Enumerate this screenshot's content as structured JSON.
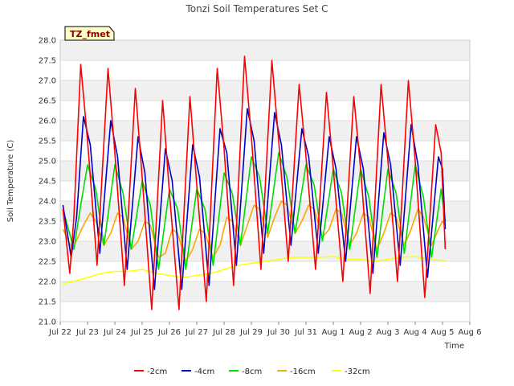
{
  "chart_data": {
    "type": "line",
    "title": "Tonzi Soil Temperatures Set C",
    "xlabel": "Time",
    "ylabel": "Soil Temperature (C)",
    "badge": "TZ_fmet",
    "xlim": [
      22,
      37
    ],
    "ylim": [
      21.0,
      28.0
    ],
    "grid": "horizontal bands",
    "legend_position": "bottom",
    "x_ticks": [
      {
        "x": 22,
        "label": "Jul 22"
      },
      {
        "x": 23,
        "label": "Jul 23"
      },
      {
        "x": 24,
        "label": "Jul 24"
      },
      {
        "x": 25,
        "label": "Jul 25"
      },
      {
        "x": 26,
        "label": "Jul 26"
      },
      {
        "x": 27,
        "label": "Jul 27"
      },
      {
        "x": 28,
        "label": "Jul 28"
      },
      {
        "x": 29,
        "label": "Jul 29"
      },
      {
        "x": 30,
        "label": "Jul 30"
      },
      {
        "x": 31,
        "label": "Jul 31"
      },
      {
        "x": 32,
        "label": "Aug 1"
      },
      {
        "x": 33,
        "label": "Aug 2"
      },
      {
        "x": 34,
        "label": "Aug 3"
      },
      {
        "x": 35,
        "label": "Aug 4"
      },
      {
        "x": 36,
        "label": "Aug 5"
      },
      {
        "x": 37,
        "label": "Aug 6"
      }
    ],
    "y_ticks": [
      "21.0",
      "21.5",
      "22.0",
      "22.5",
      "23.0",
      "23.5",
      "24.0",
      "24.5",
      "25.0",
      "25.5",
      "26.0",
      "26.5",
      "27.0",
      "27.5",
      "28.0"
    ],
    "series": [
      {
        "name": "-2cm",
        "color": "#ff0000",
        "points": [
          [
            22.1,
            23.8
          ],
          [
            22.35,
            22.2
          ],
          [
            22.5,
            23.6
          ],
          [
            22.75,
            27.4
          ],
          [
            23.0,
            25.5
          ],
          [
            23.35,
            22.4
          ],
          [
            23.75,
            27.3
          ],
          [
            24.0,
            25.2
          ],
          [
            24.35,
            21.9
          ],
          [
            24.75,
            26.8
          ],
          [
            25.0,
            24.6
          ],
          [
            25.35,
            21.3
          ],
          [
            25.75,
            26.5
          ],
          [
            26.0,
            24.2
          ],
          [
            26.35,
            21.3
          ],
          [
            26.75,
            26.6
          ],
          [
            27.0,
            24.4
          ],
          [
            27.35,
            21.5
          ],
          [
            27.75,
            27.3
          ],
          [
            28.0,
            25.3
          ],
          [
            28.35,
            21.9
          ],
          [
            28.75,
            27.6
          ],
          [
            29.0,
            25.6
          ],
          [
            29.35,
            22.3
          ],
          [
            29.75,
            27.5
          ],
          [
            30.0,
            25.5
          ],
          [
            30.35,
            22.5
          ],
          [
            30.75,
            26.9
          ],
          [
            31.0,
            25.1
          ],
          [
            31.35,
            22.3
          ],
          [
            31.75,
            26.7
          ],
          [
            32.0,
            24.8
          ],
          [
            32.35,
            22.0
          ],
          [
            32.75,
            26.6
          ],
          [
            33.0,
            24.8
          ],
          [
            33.35,
            21.7
          ],
          [
            33.75,
            26.9
          ],
          [
            34.0,
            25.0
          ],
          [
            34.35,
            22.0
          ],
          [
            34.75,
            27.0
          ],
          [
            35.0,
            25.0
          ],
          [
            35.35,
            21.6
          ],
          [
            35.75,
            25.9
          ],
          [
            35.95,
            25.2
          ],
          [
            36.1,
            22.8
          ]
        ]
      },
      {
        "name": "-4cm",
        "color": "#0000cc",
        "points": [
          [
            22.1,
            23.9
          ],
          [
            22.4,
            22.6
          ],
          [
            22.6,
            23.6
          ],
          [
            22.85,
            26.1
          ],
          [
            23.1,
            25.4
          ],
          [
            23.45,
            22.7
          ],
          [
            23.85,
            26.0
          ],
          [
            24.1,
            25.1
          ],
          [
            24.45,
            22.3
          ],
          [
            24.85,
            25.6
          ],
          [
            25.1,
            24.7
          ],
          [
            25.45,
            21.8
          ],
          [
            25.85,
            25.3
          ],
          [
            26.1,
            24.5
          ],
          [
            26.45,
            21.8
          ],
          [
            26.85,
            25.4
          ],
          [
            27.1,
            24.6
          ],
          [
            27.45,
            21.9
          ],
          [
            27.85,
            25.8
          ],
          [
            28.1,
            25.2
          ],
          [
            28.45,
            22.4
          ],
          [
            28.85,
            26.3
          ],
          [
            29.1,
            25.5
          ],
          [
            29.45,
            22.7
          ],
          [
            29.85,
            26.2
          ],
          [
            30.1,
            25.4
          ],
          [
            30.45,
            22.9
          ],
          [
            30.85,
            25.8
          ],
          [
            31.1,
            25.1
          ],
          [
            31.45,
            22.7
          ],
          [
            31.85,
            25.6
          ],
          [
            32.1,
            24.8
          ],
          [
            32.45,
            22.5
          ],
          [
            32.85,
            25.6
          ],
          [
            33.1,
            24.8
          ],
          [
            33.45,
            22.2
          ],
          [
            33.85,
            25.7
          ],
          [
            34.1,
            24.9
          ],
          [
            34.45,
            22.4
          ],
          [
            34.85,
            25.9
          ],
          [
            35.1,
            24.9
          ],
          [
            35.45,
            22.1
          ],
          [
            35.85,
            25.1
          ],
          [
            36.0,
            24.8
          ],
          [
            36.1,
            23.3
          ]
        ]
      },
      {
        "name": "-8cm",
        "color": "#00dd00",
        "points": [
          [
            22.1,
            23.8
          ],
          [
            22.5,
            22.8
          ],
          [
            22.75,
            23.9
          ],
          [
            23.0,
            24.9
          ],
          [
            23.3,
            24.3
          ],
          [
            23.6,
            22.9
          ],
          [
            24.0,
            24.9
          ],
          [
            24.3,
            24.2
          ],
          [
            24.6,
            22.8
          ],
          [
            25.0,
            24.5
          ],
          [
            25.3,
            23.9
          ],
          [
            25.6,
            22.3
          ],
          [
            26.0,
            24.3
          ],
          [
            26.3,
            23.8
          ],
          [
            26.6,
            22.3
          ],
          [
            27.0,
            24.3
          ],
          [
            27.3,
            23.8
          ],
          [
            27.6,
            22.4
          ],
          [
            28.0,
            24.7
          ],
          [
            28.3,
            24.2
          ],
          [
            28.6,
            22.9
          ],
          [
            29.0,
            25.1
          ],
          [
            29.3,
            24.6
          ],
          [
            29.6,
            23.2
          ],
          [
            30.0,
            25.2
          ],
          [
            30.3,
            24.6
          ],
          [
            30.6,
            23.2
          ],
          [
            31.0,
            24.9
          ],
          [
            31.3,
            24.4
          ],
          [
            31.6,
            23.0
          ],
          [
            32.0,
            24.8
          ],
          [
            32.3,
            24.2
          ],
          [
            32.6,
            22.8
          ],
          [
            33.0,
            24.8
          ],
          [
            33.3,
            24.1
          ],
          [
            33.6,
            22.6
          ],
          [
            34.0,
            24.8
          ],
          [
            34.3,
            24.2
          ],
          [
            34.6,
            22.7
          ],
          [
            35.0,
            24.9
          ],
          [
            35.3,
            24.1
          ],
          [
            35.6,
            22.6
          ],
          [
            35.95,
            24.3
          ],
          [
            36.1,
            23.5
          ]
        ]
      },
      {
        "name": "-16cm",
        "color": "#ffa500",
        "points": [
          [
            22.1,
            23.3
          ],
          [
            22.45,
            22.8
          ],
          [
            22.85,
            23.4
          ],
          [
            23.1,
            23.7
          ],
          [
            23.3,
            23.5
          ],
          [
            23.6,
            22.9
          ],
          [
            23.85,
            23.2
          ],
          [
            24.1,
            23.7
          ],
          [
            24.3,
            23.6
          ],
          [
            24.6,
            22.8
          ],
          [
            24.85,
            23.0
          ],
          [
            25.1,
            23.5
          ],
          [
            25.3,
            23.4
          ],
          [
            25.6,
            22.6
          ],
          [
            25.85,
            22.7
          ],
          [
            26.1,
            23.3
          ],
          [
            26.3,
            23.2
          ],
          [
            26.6,
            22.5
          ],
          [
            26.85,
            22.8
          ],
          [
            27.1,
            23.3
          ],
          [
            27.3,
            23.2
          ],
          [
            27.6,
            22.6
          ],
          [
            27.85,
            22.9
          ],
          [
            28.1,
            23.6
          ],
          [
            28.3,
            23.5
          ],
          [
            28.6,
            22.9
          ],
          [
            28.85,
            23.4
          ],
          [
            29.1,
            23.9
          ],
          [
            29.3,
            23.8
          ],
          [
            29.6,
            23.1
          ],
          [
            29.85,
            23.6
          ],
          [
            30.1,
            24.0
          ],
          [
            30.3,
            23.9
          ],
          [
            30.6,
            23.2
          ],
          [
            30.85,
            23.5
          ],
          [
            31.1,
            23.9
          ],
          [
            31.3,
            23.8
          ],
          [
            31.6,
            23.1
          ],
          [
            31.85,
            23.3
          ],
          [
            32.1,
            23.8
          ],
          [
            32.3,
            23.7
          ],
          [
            32.6,
            22.9
          ],
          [
            32.85,
            23.2
          ],
          [
            33.1,
            23.7
          ],
          [
            33.3,
            23.6
          ],
          [
            33.6,
            22.8
          ],
          [
            33.85,
            23.2
          ],
          [
            34.1,
            23.7
          ],
          [
            34.3,
            23.6
          ],
          [
            34.6,
            22.9
          ],
          [
            34.85,
            23.3
          ],
          [
            35.1,
            23.8
          ],
          [
            35.3,
            23.6
          ],
          [
            35.6,
            22.9
          ],
          [
            35.85,
            23.3
          ],
          [
            36.0,
            23.5
          ],
          [
            36.1,
            23.4
          ]
        ]
      },
      {
        "name": "-32cm",
        "color": "#ffff00",
        "points": [
          [
            22.1,
            21.95
          ],
          [
            22.5,
            22.0
          ],
          [
            23.0,
            22.1
          ],
          [
            23.5,
            22.2
          ],
          [
            24.0,
            22.25
          ],
          [
            24.5,
            22.25
          ],
          [
            25.0,
            22.3
          ],
          [
            25.5,
            22.2
          ],
          [
            26.0,
            22.15
          ],
          [
            26.5,
            22.1
          ],
          [
            27.0,
            22.15
          ],
          [
            27.5,
            22.2
          ],
          [
            28.0,
            22.3
          ],
          [
            28.5,
            22.4
          ],
          [
            29.0,
            22.45
          ],
          [
            29.5,
            22.5
          ],
          [
            30.0,
            22.55
          ],
          [
            30.5,
            22.6
          ],
          [
            31.0,
            22.6
          ],
          [
            31.5,
            22.6
          ],
          [
            32.0,
            22.62
          ],
          [
            32.5,
            22.55
          ],
          [
            33.0,
            22.55
          ],
          [
            33.5,
            22.5
          ],
          [
            34.0,
            22.55
          ],
          [
            34.5,
            22.6
          ],
          [
            35.0,
            22.62
          ],
          [
            35.5,
            22.55
          ],
          [
            36.0,
            22.52
          ],
          [
            36.1,
            22.52
          ]
        ]
      }
    ]
  }
}
